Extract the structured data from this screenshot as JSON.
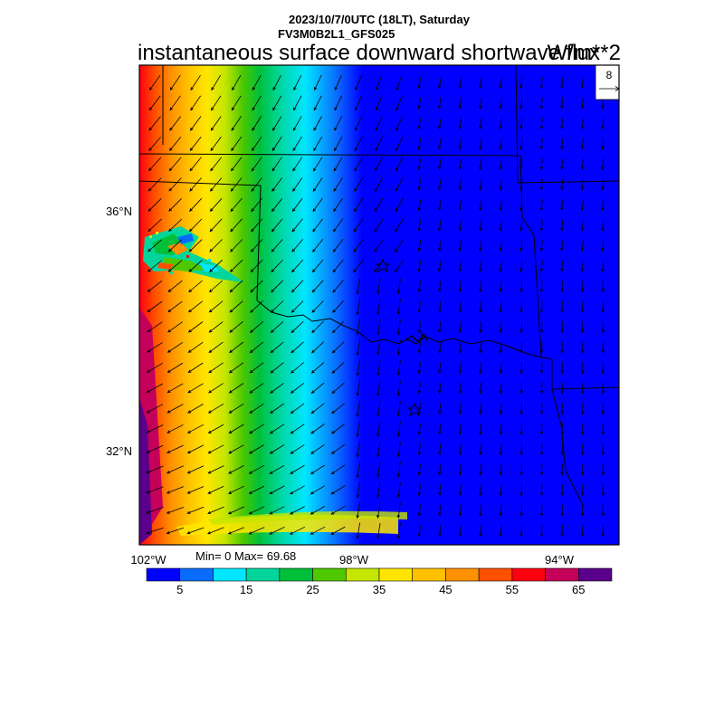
{
  "header": {
    "datetime": "2023/10/7/0UTC (18LT), Saturday",
    "model": "FV3M0B2L1_GFS025",
    "field_title": "instantaneous surface downward shortwave flux",
    "units": "W/m**2"
  },
  "vector_key": {
    "label": "8"
  },
  "stats": {
    "text": "Min= 0 Max= 69.68"
  },
  "axes": {
    "lat_labels": [
      "36°N",
      "32°N"
    ],
    "lon_labels": [
      "102°W",
      "98°W",
      "94°W"
    ]
  },
  "colorbar": {
    "colors": [
      "#0000ff",
      "#0a6cff",
      "#00e6ff",
      "#00d69c",
      "#00c03a",
      "#4ec800",
      "#c4e600",
      "#ffe600",
      "#ffc000",
      "#ff9000",
      "#ff5000",
      "#ff0010",
      "#c4005a",
      "#5a008c"
    ],
    "tick_labels": [
      "5",
      "15",
      "25",
      "35",
      "45",
      "55",
      "65"
    ]
  }
}
